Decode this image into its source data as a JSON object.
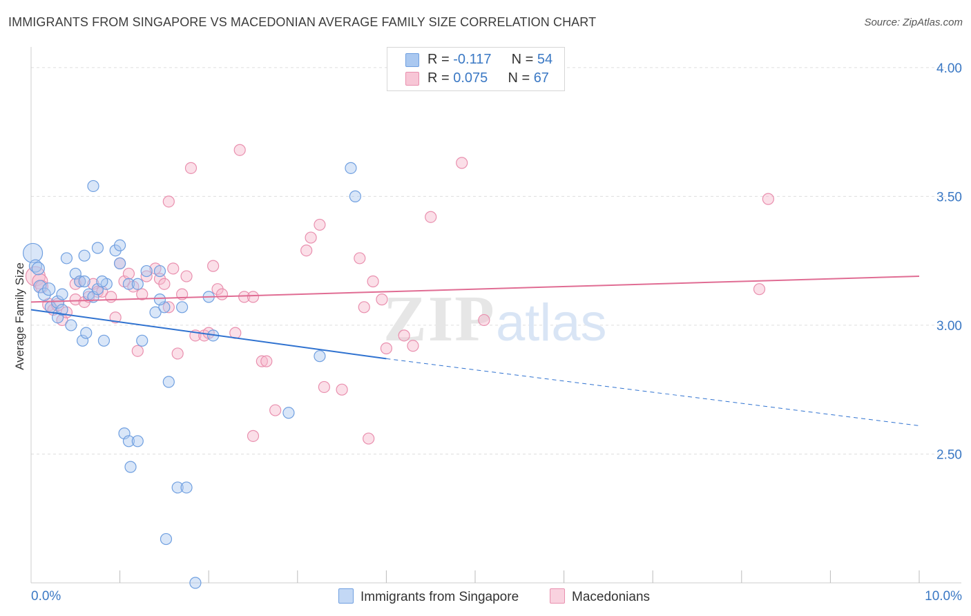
{
  "title": "IMMIGRANTS FROM SINGAPORE VS MACEDONIAN AVERAGE FAMILY SIZE CORRELATION CHART",
  "source": "Source: ZipAtlas.com",
  "watermark": {
    "zip": "ZIP",
    "atlas": "atlas"
  },
  "legend": {
    "series1": {
      "r_label": "R = ",
      "r_value": "-0.117",
      "n_label": "N = ",
      "n_value": "54"
    },
    "series2": {
      "r_label": "R = ",
      "r_value": "0.075",
      "n_label": "N = ",
      "n_value": "67"
    }
  },
  "bottom_legend": {
    "series1": "Immigrants from Singapore",
    "series2": "Macedonians"
  },
  "colors": {
    "blue_fill": "#aac8f0",
    "blue_stroke": "#6f9fe0",
    "blue_line": "#2f72d0",
    "pink_fill": "#f7b8cc",
    "pink_stroke": "#e98fae",
    "pink_line": "#e06c93",
    "axis_label": "#3a78c4",
    "grid": "#dddddd"
  },
  "chart_data": {
    "type": "scatter",
    "title": "IMMIGRANTS FROM SINGAPORE VS MACEDONIAN AVERAGE FAMILY SIZE CORRELATION CHART",
    "xlabel": "",
    "ylabel": "Average Family Size",
    "xlim": [
      0,
      10
    ],
    "ylim": [
      2.0,
      4.08
    ],
    "x_tick_labels": [
      "0.0%",
      "10.0%"
    ],
    "y_ticks": [
      2.5,
      3.0,
      3.5,
      4.0
    ],
    "y_tick_labels": [
      "2.50",
      "3.00",
      "3.50",
      "4.00"
    ],
    "grid": true,
    "series": [
      {
        "name": "Immigrants from Singapore",
        "color": "blue",
        "trend": {
          "x0": 0.0,
          "y0": 3.06,
          "x1": 4.0,
          "y1": 2.87,
          "x_dash_end": 10.0,
          "y_dash_end": 2.61
        },
        "points": [
          [
            0.02,
            3.28,
            14
          ],
          [
            0.05,
            3.23,
            9
          ],
          [
            0.08,
            3.22,
            9
          ],
          [
            0.1,
            3.15,
            9
          ],
          [
            0.15,
            3.12,
            9
          ],
          [
            0.2,
            3.14,
            9
          ],
          [
            0.22,
            3.07,
            8
          ],
          [
            0.3,
            3.09,
            9
          ],
          [
            0.3,
            3.03,
            8
          ],
          [
            0.35,
            3.06,
            8
          ],
          [
            0.4,
            3.26,
            8
          ],
          [
            0.45,
            3.0,
            8
          ],
          [
            0.35,
            3.12,
            8
          ],
          [
            0.5,
            3.2,
            8
          ],
          [
            0.55,
            3.17,
            8
          ],
          [
            0.6,
            3.17,
            8
          ],
          [
            0.65,
            3.12,
            8
          ],
          [
            0.7,
            3.11,
            8
          ],
          [
            0.75,
            3.14,
            8
          ],
          [
            0.85,
            3.16,
            8
          ],
          [
            0.7,
            3.54,
            8
          ],
          [
            0.58,
            2.94,
            8
          ],
          [
            0.6,
            3.27,
            8
          ],
          [
            0.62,
            2.97,
            8
          ],
          [
            0.8,
            3.17,
            8
          ],
          [
            0.75,
            3.3,
            8
          ],
          [
            0.82,
            2.94,
            8
          ],
          [
            0.95,
            3.29,
            8
          ],
          [
            1.0,
            3.24,
            8
          ],
          [
            1.1,
            3.16,
            8
          ],
          [
            1.2,
            3.16,
            8
          ],
          [
            1.3,
            3.21,
            8
          ],
          [
            1.45,
            3.21,
            8
          ],
          [
            1.4,
            3.05,
            8
          ],
          [
            1.5,
            3.07,
            8
          ],
          [
            1.05,
            2.58,
            8
          ],
          [
            1.1,
            2.55,
            8
          ],
          [
            1.2,
            2.55,
            8
          ],
          [
            1.25,
            2.94,
            8
          ],
          [
            1.12,
            2.45,
            8
          ],
          [
            1.55,
            2.78,
            8
          ],
          [
            1.65,
            2.37,
            8
          ],
          [
            1.75,
            2.37,
            8
          ],
          [
            1.52,
            2.17,
            8
          ],
          [
            1.45,
            3.1,
            8
          ],
          [
            2.0,
            3.11,
            8
          ],
          [
            2.05,
            2.96,
            8
          ],
          [
            2.9,
            2.66,
            8
          ],
          [
            3.25,
            2.88,
            8
          ],
          [
            3.6,
            3.61,
            8
          ],
          [
            3.65,
            3.5,
            8
          ],
          [
            1.85,
            2.0,
            8
          ],
          [
            1.0,
            3.31,
            8
          ],
          [
            1.7,
            3.07,
            8
          ]
        ]
      },
      {
        "name": "Macedonians",
        "color": "pink",
        "trend": {
          "x0": 0.0,
          "y0": 3.09,
          "x1": 10.0,
          "y1": 3.19
        },
        "points": [
          [
            0.05,
            3.19,
            14
          ],
          [
            0.1,
            3.17,
            11
          ],
          [
            0.12,
            3.15,
            9
          ],
          [
            0.2,
            3.08,
            9
          ],
          [
            0.25,
            3.06,
            8
          ],
          [
            0.3,
            3.08,
            9
          ],
          [
            0.35,
            3.02,
            8
          ],
          [
            0.4,
            3.05,
            8
          ],
          [
            0.5,
            3.1,
            8
          ],
          [
            0.55,
            3.17,
            8
          ],
          [
            0.5,
            3.16,
            8
          ],
          [
            0.6,
            3.09,
            8
          ],
          [
            0.65,
            3.11,
            8
          ],
          [
            0.7,
            3.16,
            8
          ],
          [
            0.75,
            3.13,
            8
          ],
          [
            0.8,
            3.13,
            8
          ],
          [
            0.9,
            3.11,
            8
          ],
          [
            0.95,
            3.03,
            8
          ],
          [
            1.0,
            3.24,
            8
          ],
          [
            1.05,
            3.17,
            8
          ],
          [
            1.1,
            3.2,
            8
          ],
          [
            1.15,
            3.15,
            8
          ],
          [
            1.2,
            2.9,
            8
          ],
          [
            1.25,
            3.12,
            8
          ],
          [
            1.3,
            3.19,
            8
          ],
          [
            1.4,
            3.22,
            8
          ],
          [
            1.45,
            3.18,
            8
          ],
          [
            1.5,
            3.16,
            8
          ],
          [
            1.55,
            3.07,
            8
          ],
          [
            1.6,
            3.22,
            8
          ],
          [
            1.65,
            2.89,
            8
          ],
          [
            1.7,
            3.12,
            8
          ],
          [
            1.75,
            3.19,
            8
          ],
          [
            1.8,
            3.61,
            8
          ],
          [
            1.85,
            2.96,
            8
          ],
          [
            1.95,
            2.96,
            8
          ],
          [
            2.0,
            2.97,
            8
          ],
          [
            2.05,
            3.23,
            8
          ],
          [
            2.1,
            3.14,
            8
          ],
          [
            2.15,
            3.12,
            8
          ],
          [
            2.3,
            2.97,
            8
          ],
          [
            2.35,
            3.68,
            8
          ],
          [
            2.4,
            3.11,
            8
          ],
          [
            2.5,
            3.11,
            8
          ],
          [
            2.6,
            2.86,
            8
          ],
          [
            2.65,
            2.86,
            8
          ],
          [
            2.75,
            2.67,
            8
          ],
          [
            2.5,
            2.57,
            8
          ],
          [
            3.1,
            3.29,
            8
          ],
          [
            3.15,
            3.34,
            8
          ],
          [
            3.25,
            3.39,
            8
          ],
          [
            3.3,
            2.76,
            8
          ],
          [
            3.5,
            2.75,
            8
          ],
          [
            3.7,
            3.26,
            8
          ],
          [
            3.75,
            3.07,
            8
          ],
          [
            3.8,
            2.56,
            8
          ],
          [
            3.85,
            3.17,
            8
          ],
          [
            3.95,
            3.1,
            8
          ],
          [
            4.0,
            2.91,
            8
          ],
          [
            4.2,
            2.96,
            8
          ],
          [
            4.3,
            2.92,
            8
          ],
          [
            4.5,
            3.42,
            8
          ],
          [
            4.85,
            3.63,
            8
          ],
          [
            5.1,
            3.02,
            8
          ],
          [
            8.2,
            3.14,
            8
          ],
          [
            8.3,
            3.49,
            8
          ],
          [
            1.55,
            3.48,
            8
          ]
        ]
      }
    ]
  }
}
